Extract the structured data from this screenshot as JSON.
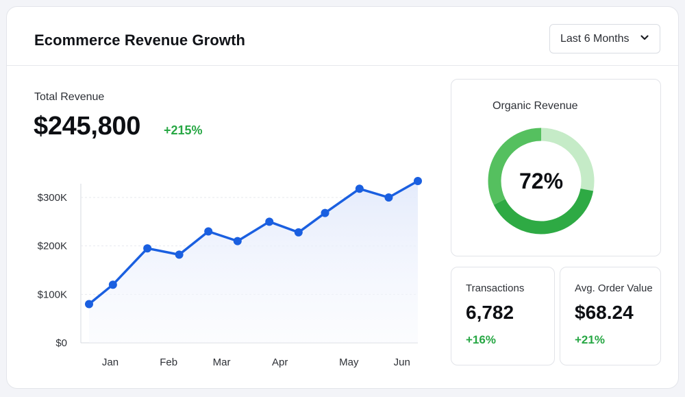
{
  "header": {
    "title": "Ecommerce Revenue Growth",
    "range_label": "Last 6 Months",
    "range_icon": "chevron-down-icon"
  },
  "summary": {
    "total_label": "Total Revenue",
    "total_value": "$245,800",
    "total_change": "+215%"
  },
  "organic": {
    "label": "Organic Revenue",
    "percent_text": "72%",
    "percent": 72,
    "color_main": "#2eaa44",
    "color_light": "#c5ebc7",
    "color_mid": "#55c05f"
  },
  "kpis": {
    "transactions": {
      "label": "Transactions",
      "value": "6,782",
      "change": "+16%"
    },
    "aov": {
      "label": "Avg. Order Value",
      "value": "$68.24",
      "change": "+21%"
    }
  },
  "colors": {
    "line": "#1a5fe0",
    "positive": "#27a744"
  },
  "chart_data": {
    "type": "line",
    "x_ticks": [
      "Jan",
      "Feb",
      "Mar",
      "Apr",
      "May",
      "Jun"
    ],
    "y_ticks": [
      "$0",
      "$100K",
      "$200K",
      "$300K"
    ],
    "ylim": [
      0,
      300000
    ],
    "grid": true,
    "series": [
      {
        "x": [
          0,
          0.45,
          1.1,
          1.7,
          2.25,
          2.8,
          3.4,
          3.95,
          4.45,
          5.1,
          5.65,
          6.2
        ],
        "values": [
          80000,
          120000,
          195000,
          182000,
          230000,
          210000,
          250000,
          228000,
          268000,
          318000,
          300000,
          334000
        ]
      }
    ]
  }
}
